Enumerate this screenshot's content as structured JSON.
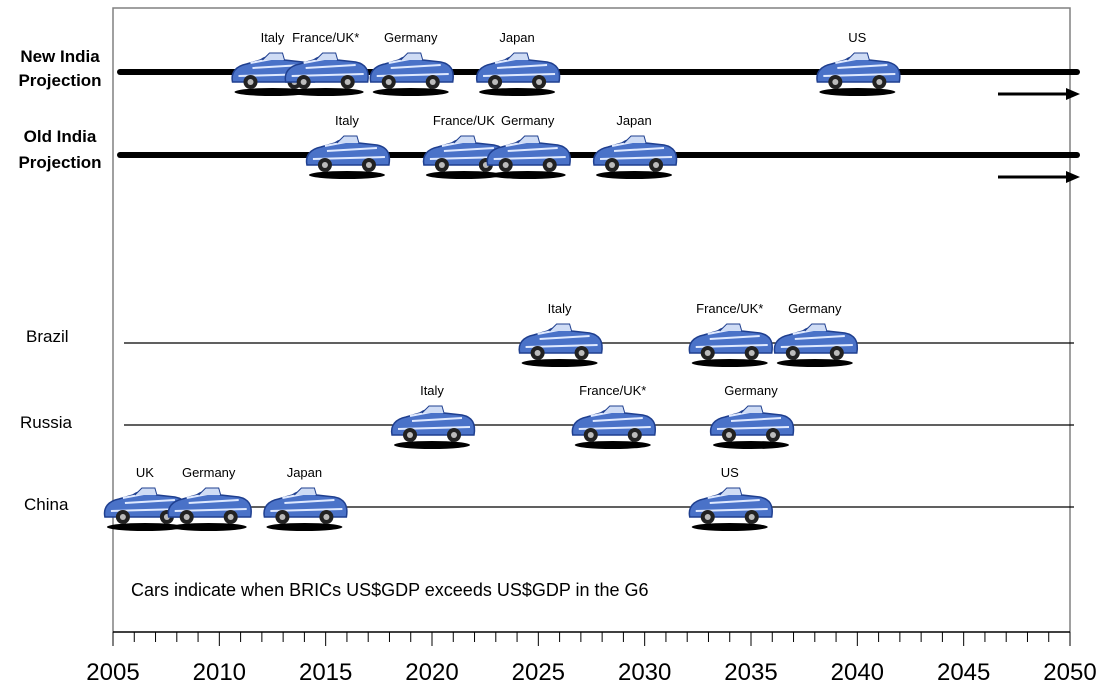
{
  "chart_data": {
    "type": "timeline",
    "x_axis": {
      "range": [
        2005,
        2050
      ],
      "major_ticks": [
        2005,
        2010,
        2015,
        2020,
        2025,
        2030,
        2035,
        2040,
        2045,
        2050
      ],
      "minor_step": 1
    },
    "annotation": "Cars indicate when BRICs US$GDP exceeds US$GDP in the G6",
    "rows": [
      {
        "label_lines": [
          "New India",
          "Projection"
        ],
        "bold": true,
        "arrow": true,
        "events": [
          {
            "label": "Italy",
            "year": 2012.5
          },
          {
            "label": "France/UK*",
            "year": 2015
          },
          {
            "label": "Germany",
            "year": 2019
          },
          {
            "label": "Japan",
            "year": 2024
          },
          {
            "label": "US",
            "year": 2040
          }
        ]
      },
      {
        "label_lines": [
          "Old India",
          "Projection"
        ],
        "bold": true,
        "arrow": true,
        "events": [
          {
            "label": "Italy",
            "year": 2016
          },
          {
            "label": "France/UK",
            "year": 2021.5
          },
          {
            "label": "Germany",
            "year": 2024.5
          },
          {
            "label": "Japan",
            "year": 2029.5
          }
        ]
      },
      {
        "label_lines": [
          "Brazil"
        ],
        "bold": false,
        "arrow": false,
        "events": [
          {
            "label": "Italy",
            "year": 2026
          },
          {
            "label": "France/UK*",
            "year": 2034
          },
          {
            "label": "Germany",
            "year": 2038
          }
        ]
      },
      {
        "label_lines": [
          "Russia"
        ],
        "bold": false,
        "arrow": false,
        "events": [
          {
            "label": "Italy",
            "year": 2020
          },
          {
            "label": "France/UK*",
            "year": 2028.5
          },
          {
            "label": "Germany",
            "year": 2035
          }
        ]
      },
      {
        "label_lines": [
          "China"
        ],
        "bold": false,
        "arrow": false,
        "events": [
          {
            "label": "UK",
            "year": 2006.5
          },
          {
            "label": "Germany",
            "year": 2009.5
          },
          {
            "label": "Japan",
            "year": 2014
          },
          {
            "label": "US",
            "year": 2034
          }
        ]
      }
    ]
  },
  "colors": {
    "car_body": "#4a72c8",
    "car_dark": "#1f3f8f",
    "car_stripe": "#dfe9ff",
    "line": "#000000",
    "frame": "#808080"
  }
}
